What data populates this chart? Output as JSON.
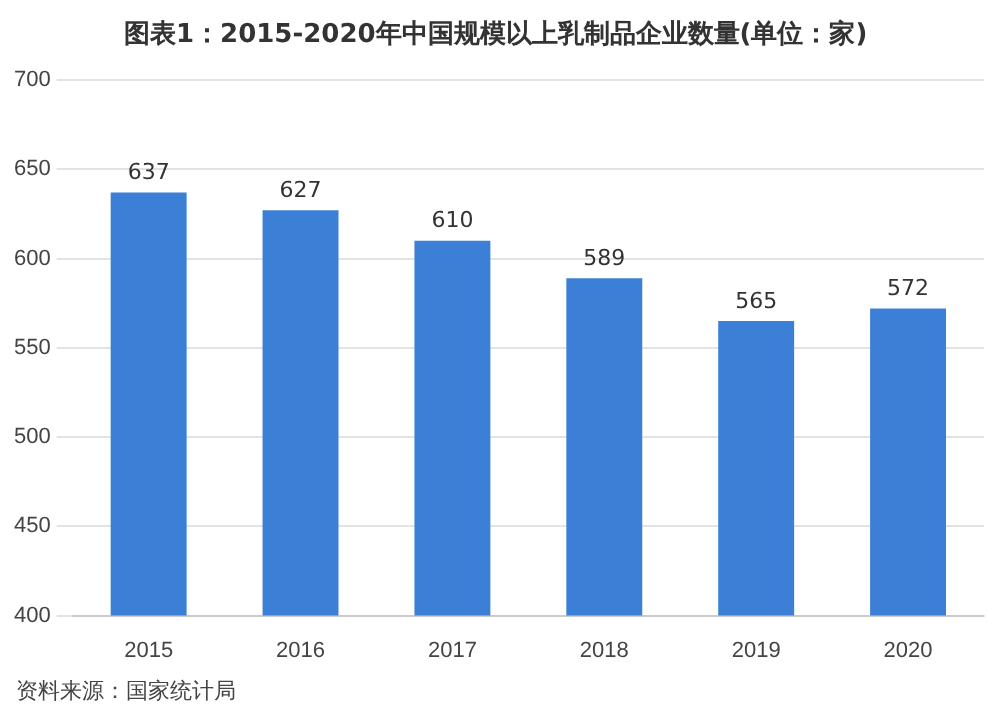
{
  "chart_data": {
    "type": "bar",
    "title": "图表1：2015-2020年中国规模以上乳制品企业数量(单位：家)",
    "categories": [
      "2015",
      "2016",
      "2017",
      "2018",
      "2019",
      "2020"
    ],
    "values": [
      637,
      627,
      610,
      589,
      565,
      572
    ],
    "color": "#3b80d6",
    "ylim": [
      400,
      700
    ],
    "yticks": [
      400,
      450,
      500,
      550,
      600,
      650,
      700
    ],
    "grid": "y",
    "data_labels": true,
    "legend": false,
    "annotations": [
      "资料来源：国家统计局"
    ]
  }
}
